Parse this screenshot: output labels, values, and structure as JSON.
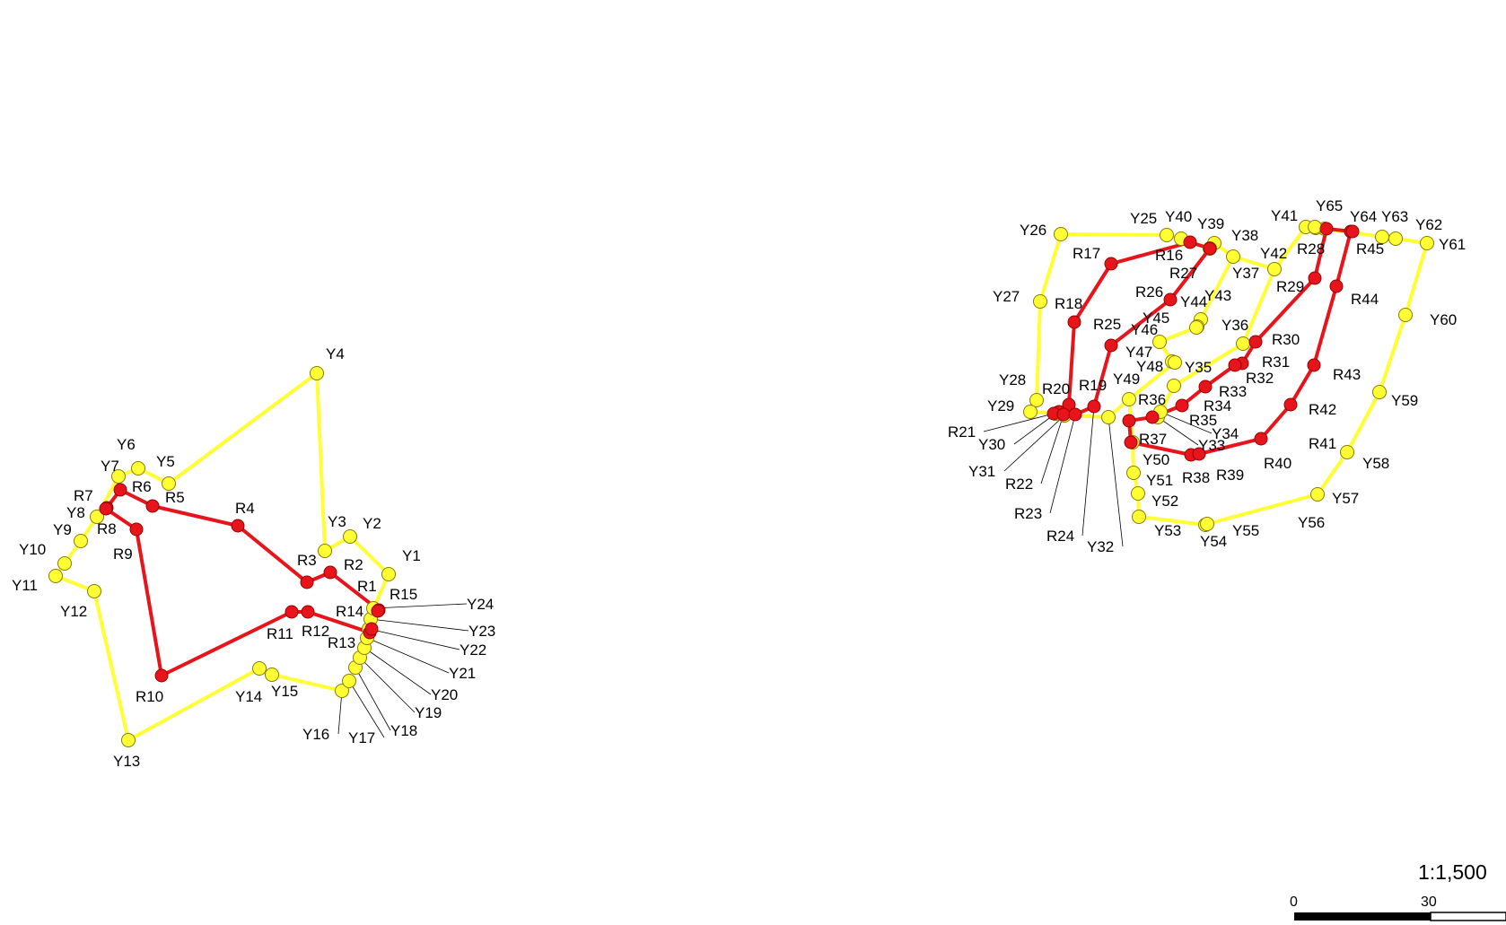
{
  "map": {
    "colors": {
      "red_route": "#e8141c",
      "yellow_route": "#ffff33",
      "marker_stroke": "#8a7a00",
      "red_stroke": "#990000",
      "leader": "#000000",
      "background": "#ffffff"
    }
  },
  "scale": {
    "ratio_text": "1:1,500",
    "tick0": "0",
    "tick1": "30"
  },
  "groups": [
    {
      "id": "left",
      "yellow": [
        "Y1",
        "Y2",
        "Y3",
        "Y4",
        "Y5",
        "Y6",
        "Y7",
        "Y8",
        "Y9",
        "Y10",
        "Y11",
        "Y12",
        "Y13",
        "Y14",
        "Y15",
        "Y16",
        "Y17",
        "Y18",
        "Y19",
        "Y20",
        "Y21",
        "Y22",
        "Y23",
        "Y24"
      ],
      "red": [
        "R1",
        "R2",
        "R3",
        "R4",
        "R5",
        "R6",
        "R7",
        "R8",
        "R9",
        "R10",
        "R11",
        "R12",
        "R13",
        "R14",
        "R15"
      ]
    },
    {
      "id": "right",
      "yellow": [
        "Y25",
        "Y26",
        "Y27",
        "Y28",
        "Y29",
        "Y30",
        "Y31",
        "Y32",
        "Y33",
        "Y34",
        "Y35",
        "Y36",
        "Y37",
        "Y38",
        "Y39",
        "Y40",
        "Y41",
        "Y42",
        "Y43",
        "Y44",
        "Y45",
        "Y46",
        "Y47",
        "Y48",
        "Y49",
        "Y50",
        "Y51",
        "Y52",
        "Y53",
        "Y54",
        "Y55",
        "Y56",
        "Y57",
        "Y58",
        "Y59",
        "Y60",
        "Y61",
        "Y62",
        "Y63",
        "Y64",
        "Y65"
      ],
      "red": [
        "R16",
        "R17",
        "R18",
        "R19",
        "R20",
        "R21",
        "R22",
        "R23",
        "R24",
        "R25",
        "R26",
        "R27",
        "R28",
        "R29",
        "R30",
        "R31",
        "R32",
        "R33",
        "R34",
        "R35",
        "R36",
        "R37",
        "R38",
        "R39",
        "R40",
        "R41",
        "R42",
        "R43",
        "R44",
        "R45"
      ]
    }
  ]
}
